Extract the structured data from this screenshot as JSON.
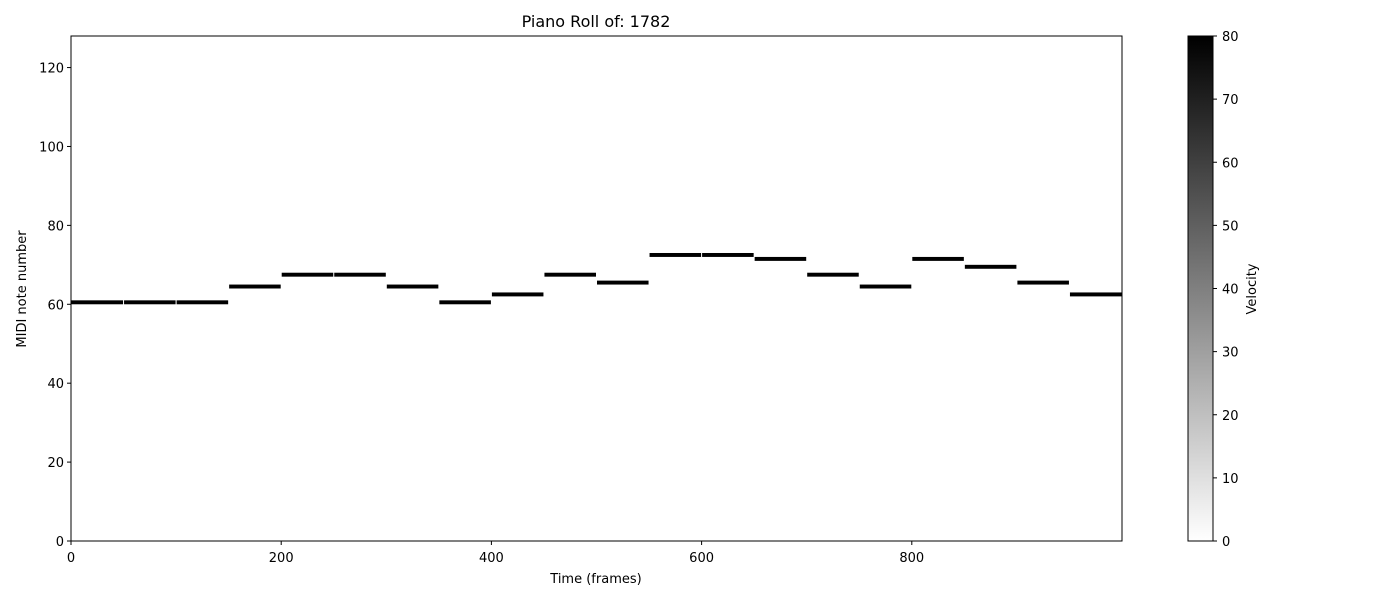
{
  "chart_data": {
    "type": "heatmap",
    "title": "Piano Roll of: 1782",
    "xlabel": "Time (frames)",
    "ylabel": "MIDI note number",
    "xlim": [
      0,
      1000
    ],
    "ylim": [
      0,
      128
    ],
    "xticks": [
      0,
      200,
      400,
      600,
      800
    ],
    "yticks": [
      0,
      20,
      40,
      60,
      80,
      100,
      120
    ],
    "grid": false,
    "colormap": "Greys",
    "colorbar": {
      "label": "Velocity",
      "range": [
        0,
        80
      ],
      "ticks": [
        0,
        10,
        20,
        30,
        40,
        50,
        60,
        70,
        80
      ]
    },
    "notes": [
      {
        "start": 0,
        "end": 50,
        "pitch": 60,
        "velocity": 80
      },
      {
        "start": 50,
        "end": 100,
        "pitch": 60,
        "velocity": 80
      },
      {
        "start": 100,
        "end": 150,
        "pitch": 60,
        "velocity": 80
      },
      {
        "start": 150,
        "end": 200,
        "pitch": 64,
        "velocity": 80
      },
      {
        "start": 200,
        "end": 250,
        "pitch": 67,
        "velocity": 80
      },
      {
        "start": 250,
        "end": 300,
        "pitch": 67,
        "velocity": 80
      },
      {
        "start": 300,
        "end": 350,
        "pitch": 64,
        "velocity": 80
      },
      {
        "start": 350,
        "end": 400,
        "pitch": 60,
        "velocity": 80
      },
      {
        "start": 400,
        "end": 450,
        "pitch": 62,
        "velocity": 80
      },
      {
        "start": 450,
        "end": 500,
        "pitch": 67,
        "velocity": 80
      },
      {
        "start": 500,
        "end": 550,
        "pitch": 65,
        "velocity": 80
      },
      {
        "start": 550,
        "end": 600,
        "pitch": 72,
        "velocity": 80
      },
      {
        "start": 600,
        "end": 650,
        "pitch": 72,
        "velocity": 80
      },
      {
        "start": 650,
        "end": 700,
        "pitch": 71,
        "velocity": 80
      },
      {
        "start": 700,
        "end": 750,
        "pitch": 67,
        "velocity": 80
      },
      {
        "start": 750,
        "end": 800,
        "pitch": 64,
        "velocity": 80
      },
      {
        "start": 800,
        "end": 850,
        "pitch": 71,
        "velocity": 80
      },
      {
        "start": 850,
        "end": 900,
        "pitch": 69,
        "velocity": 80
      },
      {
        "start": 900,
        "end": 950,
        "pitch": 65,
        "velocity": 80
      },
      {
        "start": 950,
        "end": 1000,
        "pitch": 62,
        "velocity": 80
      }
    ]
  }
}
